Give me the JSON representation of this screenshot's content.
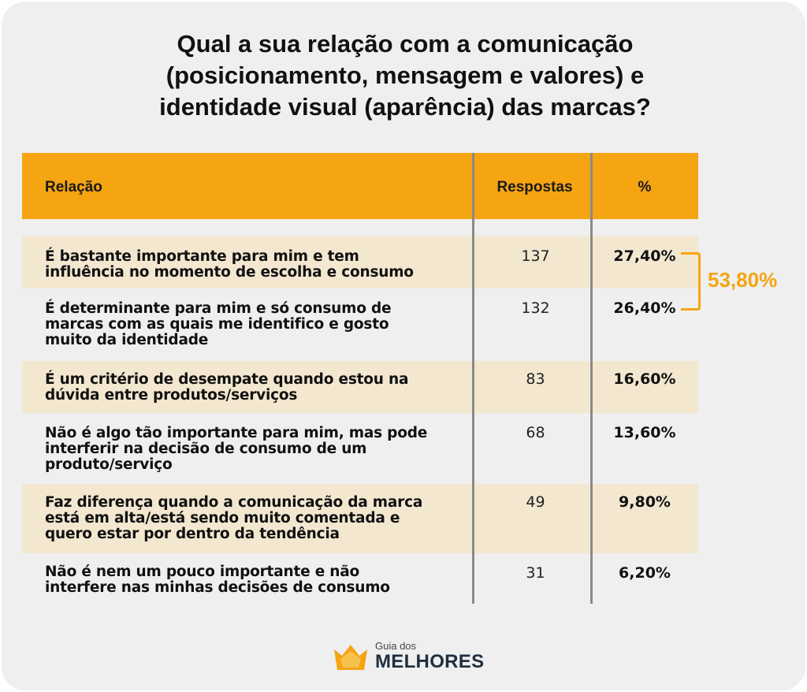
{
  "chart_data": {
    "type": "table",
    "title": "Qual a sua relação com a comunicação (posicionamento, mensagem e valores) e identidade visual (aparência) das marcas?",
    "title_lines": [
      "Qual a sua relação com a comunicação",
      "(posicionamento, mensagem e valores) e",
      "identidade visual (aparência) das marcas?"
    ],
    "columns": [
      "Relação",
      "Respostas",
      "%"
    ],
    "rows": [
      {
        "label": "É bastante importante para mim e tem influência no momento de escolha e consumo",
        "label_lines": [
          "É bastante importante para mim e tem",
          "influência no momento de escolha e consumo"
        ],
        "responses": 137,
        "percent": "27,40%"
      },
      {
        "label": "É determinante para mim e só consumo de marcas com as quais me identifico e gosto muito da identidade",
        "label_lines": [
          "É determinante para mim e só consumo de",
          "marcas com as quais me identifico e gosto",
          "muito da identidade"
        ],
        "responses": 132,
        "percent": "26,40%"
      },
      {
        "label": "É um critério de desempate quando estou na dúvida entre produtos/serviços",
        "label_lines": [
          "É um critério de desempate quando estou na",
          "dúvida entre produtos/serviços"
        ],
        "responses": 83,
        "percent": "16,60%"
      },
      {
        "label": "Não é algo tão importante para mim, mas pode interferir na decisão de consumo de um produto/serviço",
        "label_lines": [
          "Não é algo tão importante para mim, mas pode",
          "interferir na decisão de consumo de um",
          "produto/serviço"
        ],
        "responses": 68,
        "percent": "13,60%"
      },
      {
        "label": "Faz diferença quando a comunicação da marca está em alta/está sendo muito comentada e quero estar por dentro da tendência",
        "label_lines": [
          "Faz diferença quando a comunicação da marca",
          "está em alta/está sendo muito comentada e",
          "quero estar por dentro da tendência"
        ],
        "responses": 49,
        "percent": "9,80%"
      },
      {
        "label": "Não é nem um pouco importante e não interfere nas minhas decisões de consumo",
        "label_lines": [
          "Não é nem um pouco importante e não",
          "interfere nas minhas decisões de consumo"
        ],
        "responses": 31,
        "percent": "6,20%"
      }
    ],
    "annotation": {
      "text": "53,80%",
      "groups_rows": [
        0,
        1
      ]
    }
  },
  "brand": {
    "small": "Guia dos",
    "big": "MELHORES",
    "icon": "crown-logo-icon"
  },
  "colors": {
    "accent": "#f5a412",
    "band": "#f3e7d0",
    "card": "#efefef",
    "divider": "#8a8a8a",
    "brand_text": "#1f2f3f"
  }
}
